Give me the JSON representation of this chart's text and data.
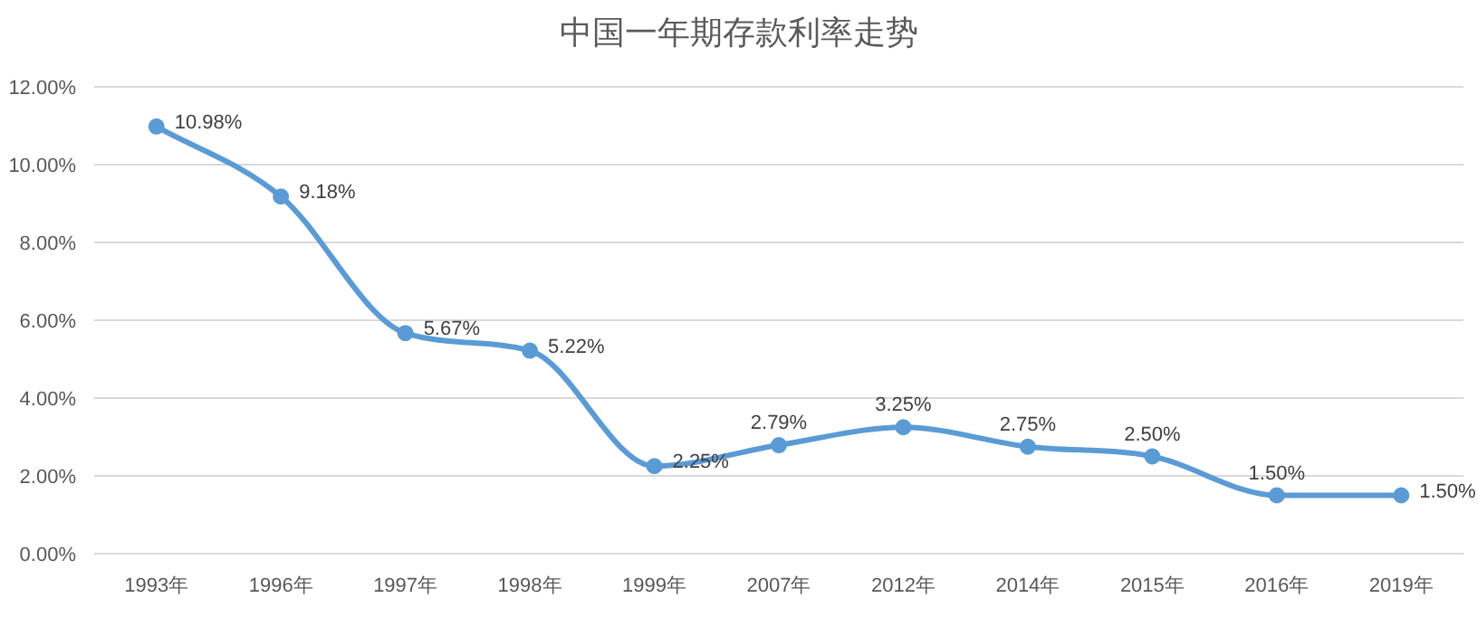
{
  "chart_data": {
    "type": "line",
    "title": "中国一年期存款利率走势",
    "categories": [
      "1993年",
      "1996年",
      "1997年",
      "1998年",
      "1999年",
      "2007年",
      "2012年",
      "2014年",
      "2015年",
      "2016年",
      "2019年"
    ],
    "series": [
      {
        "color": "#5b9bd5",
        "values": [
          10.98,
          9.18,
          5.67,
          5.22,
          2.25,
          2.79,
          3.25,
          2.75,
          2.5,
          1.5,
          1.5
        ],
        "value_labels": [
          "10.98%",
          "9.18%",
          "5.67%",
          "5.22%",
          "2.25%",
          "2.79%",
          "3.25%",
          "2.75%",
          "2.50%",
          "1.50%",
          "1.50%"
        ]
      }
    ],
    "ylim": [
      0,
      12
    ],
    "yticks": [
      {
        "value": 0,
        "label": "0.00%"
      },
      {
        "value": 2,
        "label": "2.00%"
      },
      {
        "value": 4,
        "label": "4.00%"
      },
      {
        "value": 6,
        "label": "6.00%"
      },
      {
        "value": 8,
        "label": "8.00%"
      },
      {
        "value": 10,
        "label": "10.00%"
      },
      {
        "value": 12,
        "label": "12.00%"
      }
    ],
    "grid": "y",
    "marker": "circle",
    "line_style": "solid"
  }
}
